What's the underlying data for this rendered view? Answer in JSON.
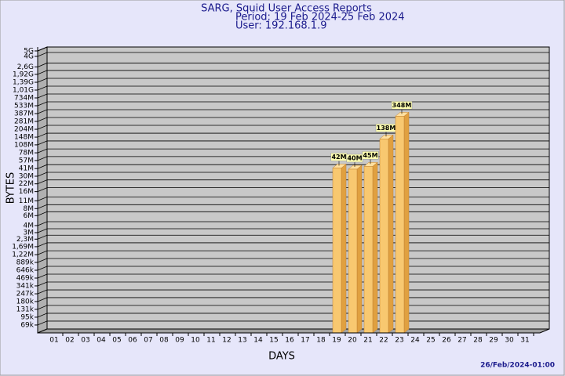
{
  "chart_data": {
    "type": "bar3d",
    "title": "SARG, Squid User Access Reports",
    "subtitle": [
      "Period: 19 Feb 2024-25 Feb 2024",
      "User: 192.168.1.9"
    ],
    "x_label": "DAYS",
    "y_label": "BYTES",
    "footer": "26/Feb/2024-01:00",
    "log_scale": true,
    "grid": true,
    "color": "#f8c870",
    "categories": [
      "01",
      "02",
      "03",
      "04",
      "05",
      "06",
      "07",
      "08",
      "09",
      "10",
      "11",
      "12",
      "13",
      "14",
      "15",
      "16",
      "17",
      "18",
      "19",
      "20",
      "21",
      "22",
      "23",
      "24",
      "25",
      "26",
      "27",
      "28",
      "29",
      "30",
      "31"
    ],
    "values": [
      null,
      null,
      null,
      null,
      null,
      null,
      null,
      null,
      null,
      null,
      null,
      null,
      null,
      null,
      null,
      null,
      null,
      null,
      42000000,
      40000000,
      45000000,
      138000000,
      348000000,
      null,
      null,
      null,
      null,
      null,
      null,
      null,
      null
    ],
    "value_labels": [
      null,
      null,
      null,
      null,
      null,
      null,
      null,
      null,
      null,
      null,
      null,
      null,
      null,
      null,
      null,
      null,
      null,
      null,
      "42M",
      "40M",
      "45M",
      "138M",
      "348M",
      null,
      null,
      null,
      null,
      null,
      null,
      null,
      null
    ],
    "ylim": [
      50000,
      5000000000
    ],
    "yticks": [
      {
        "value": 5000000000,
        "label": "5G"
      },
      {
        "value": 4000000000,
        "label": "4G"
      },
      {
        "value": 2600000000,
        "label": "2,6G"
      },
      {
        "value": 1920000000,
        "label": "1,92G"
      },
      {
        "value": 1390000000,
        "label": "1,39G"
      },
      {
        "value": 1010000000,
        "label": "1,01G"
      },
      {
        "value": 734000000,
        "label": "734M"
      },
      {
        "value": 533000000,
        "label": "533M"
      },
      {
        "value": 387000000,
        "label": "387M"
      },
      {
        "value": 281000000,
        "label": "281M"
      },
      {
        "value": 204000000,
        "label": "204M"
      },
      {
        "value": 148000000,
        "label": "148M"
      },
      {
        "value": 108000000,
        "label": "108M"
      },
      {
        "value": 78000000,
        "label": "78M"
      },
      {
        "value": 57000000,
        "label": "57M"
      },
      {
        "value": 41000000,
        "label": "41M"
      },
      {
        "value": 30000000,
        "label": "30M"
      },
      {
        "value": 22000000,
        "label": "22M"
      },
      {
        "value": 16000000,
        "label": "16M"
      },
      {
        "value": 11000000,
        "label": "11M"
      },
      {
        "value": 8000000,
        "label": "8M"
      },
      {
        "value": 6000000,
        "label": "6M"
      },
      {
        "value": 4000000,
        "label": "4M"
      },
      {
        "value": 3000000,
        "label": "3M"
      },
      {
        "value": 2300000,
        "label": "2,3M"
      },
      {
        "value": 1690000,
        "label": "1,69M"
      },
      {
        "value": 1220000,
        "label": "1,22M"
      },
      {
        "value": 889000,
        "label": "889k"
      },
      {
        "value": 646000,
        "label": "646k"
      },
      {
        "value": 469000,
        "label": "469k"
      },
      {
        "value": 341000,
        "label": "341k"
      },
      {
        "value": 247000,
        "label": "247k"
      },
      {
        "value": 180000,
        "label": "180k"
      },
      {
        "value": 131000,
        "label": "131k"
      },
      {
        "value": 95000,
        "label": "95k"
      },
      {
        "value": 69000,
        "label": "69k"
      }
    ]
  }
}
